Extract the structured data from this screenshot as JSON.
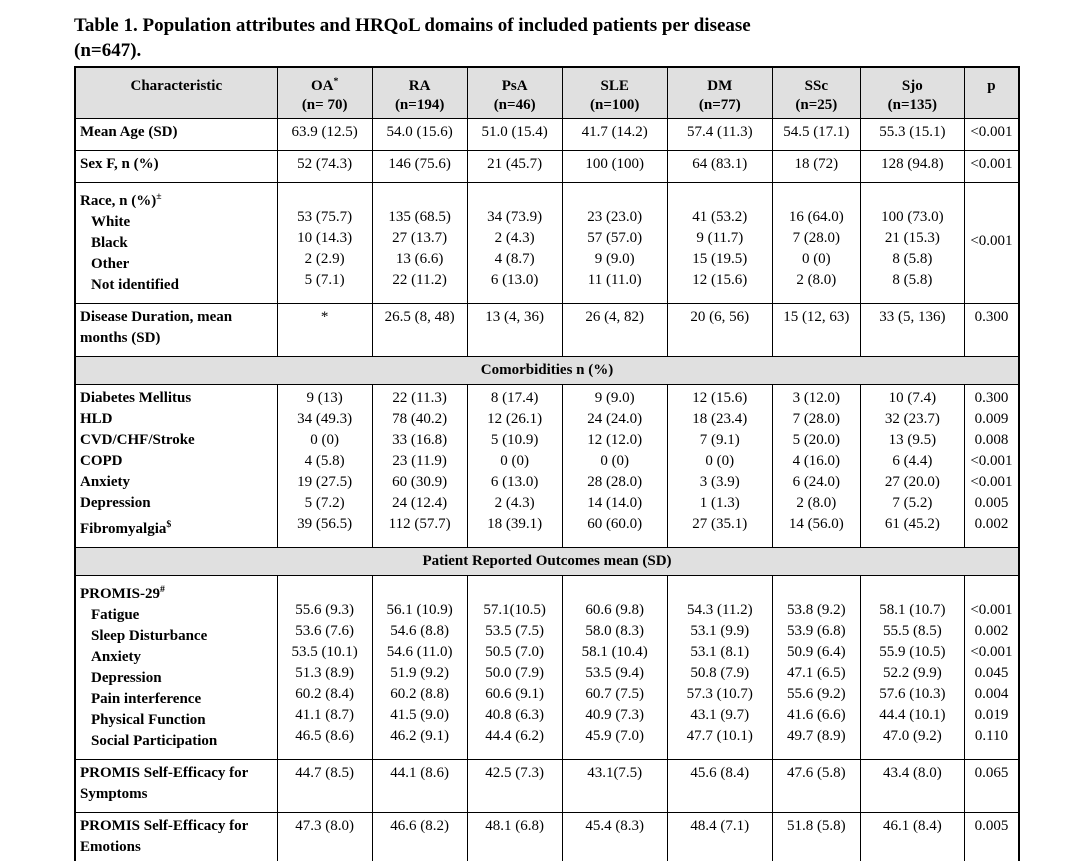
{
  "page": {
    "title_line1": "Table 1. Population attributes and HRQoL domains of included patients per disease",
    "title_line2": "(n=647)."
  },
  "colors": {
    "header_bg": "#e0e0e0",
    "border": "#000000",
    "text": "#000000"
  },
  "table": {
    "header": [
      {
        "label": "Characteristic",
        "sup": "",
        "sub": ""
      },
      {
        "label": "OA",
        "sup": "*",
        "sub": "(n= 70)"
      },
      {
        "label": "RA",
        "sup": "",
        "sub": "(n=194)"
      },
      {
        "label": "PsA",
        "sup": "",
        "sub": "(n=46)"
      },
      {
        "label": "SLE",
        "sup": "",
        "sub": "(n=100)"
      },
      {
        "label": "DM",
        "sup": "",
        "sub": "(n=77)"
      },
      {
        "label": "SSc",
        "sup": "",
        "sub": "(n=25)"
      },
      {
        "label": "Sjo",
        "sup": "",
        "sub": "(n=135)"
      },
      {
        "label": "p",
        "sup": "",
        "sub": ""
      }
    ],
    "rows": [
      {
        "type": "block",
        "name": "mean-age",
        "lines": [
          {
            "label": "Mean Age (SD)",
            "sup": "",
            "indent": false,
            "values": [
              "63.9 (12.5)",
              "54.0 (15.6)",
              "51.0 (15.4)",
              "41.7 (14.2)",
              "57.4 (11.3)",
              "54.5 (17.1)",
              "55.3 (15.1)"
            ],
            "p": "<0.001"
          }
        ]
      },
      {
        "type": "block",
        "name": "sex-f",
        "lines": [
          {
            "label": "Sex F, n (%)",
            "sup": "",
            "indent": false,
            "values": [
              "52 (74.3)",
              "146 (75.6)",
              "21 (45.7)",
              "100 (100)",
              "64 (83.1)",
              "18 (72)",
              "128 (94.8)"
            ],
            "p": "<0.001"
          }
        ]
      },
      {
        "type": "block",
        "name": "race",
        "p_center": "<0.001",
        "lines": [
          {
            "label": "Race, n (%)",
            "sup": "±",
            "indent": false,
            "values": [
              "",
              "",
              "",
              "",
              "",
              "",
              ""
            ],
            "p": ""
          },
          {
            "label": "White",
            "sup": "",
            "indent": true,
            "values": [
              "53 (75.7)",
              "135 (68.5)",
              "34 (73.9)",
              "23 (23.0)",
              "41 (53.2)",
              "16 (64.0)",
              "100 (73.0)"
            ],
            "p": ""
          },
          {
            "label": "Black",
            "sup": "",
            "indent": true,
            "values": [
              "10 (14.3)",
              "27 (13.7)",
              "2 (4.3)",
              "57 (57.0)",
              "9 (11.7)",
              "7 (28.0)",
              "21 (15.3)"
            ],
            "p": ""
          },
          {
            "label": "Other",
            "sup": "",
            "indent": true,
            "values": [
              "2 (2.9)",
              "13 (6.6)",
              "4 (8.7)",
              "9 (9.0)",
              "15 (19.5)",
              "0 (0)",
              "8 (5.8)"
            ],
            "p": ""
          },
          {
            "label": "Not identified",
            "sup": "",
            "indent": true,
            "values": [
              "5 (7.1)",
              "22 (11.2)",
              "6 (13.0)",
              "11 (11.0)",
              "12 (15.6)",
              "2 (8.0)",
              "8 (5.8)"
            ],
            "p": ""
          }
        ]
      },
      {
        "type": "block",
        "name": "disease-duration",
        "lines": [
          {
            "label": "Disease Duration, mean months (SD)",
            "sup": "",
            "indent": false,
            "values": [
              "*",
              "26.5 (8, 48)",
              "13 (4, 36)",
              "26 (4, 82)",
              "20 (6, 56)",
              "15 (12, 63)",
              "33 (5, 136)"
            ],
            "p": "0.300"
          }
        ]
      },
      {
        "type": "section",
        "name": "comorbidities",
        "label": "Comorbidities n (%)"
      },
      {
        "type": "block",
        "name": "comorbidities-rows",
        "lines": [
          {
            "label": "Diabetes Mellitus",
            "sup": "",
            "indent": false,
            "values": [
              "9 (13)",
              "22 (11.3)",
              "8 (17.4)",
              "9 (9.0)",
              "12 (15.6)",
              "3 (12.0)",
              "10 (7.4)"
            ],
            "p": "0.300"
          },
          {
            "label": "HLD",
            "sup": "",
            "indent": false,
            "values": [
              "34 (49.3)",
              "78 (40.2)",
              "12 (26.1)",
              "24 (24.0)",
              "18 (23.4)",
              "7 (28.0)",
              "32 (23.7)"
            ],
            "p": "0.009"
          },
          {
            "label": "CVD/CHF/Stroke",
            "sup": "",
            "indent": false,
            "values": [
              "0 (0)",
              "33 (16.8)",
              "5 (10.9)",
              "12 (12.0)",
              "7 (9.1)",
              "5 (20.0)",
              "13 (9.5)"
            ],
            "p": "0.008"
          },
          {
            "label": "COPD",
            "sup": "",
            "indent": false,
            "values": [
              "4 (5.8)",
              "23 (11.9)",
              "0 (0)",
              "0 (0)",
              "0 (0)",
              "4 (16.0)",
              "6 (4.4)"
            ],
            "p": "<0.001"
          },
          {
            "label": "Anxiety",
            "sup": "",
            "indent": false,
            "values": [
              "19 (27.5)",
              "60 (30.9)",
              "6 (13.0)",
              "28 (28.0)",
              "3 (3.9)",
              "6 (24.0)",
              "27 (20.0)"
            ],
            "p": "<0.001"
          },
          {
            "label": "Depression",
            "sup": "",
            "indent": false,
            "values": [
              "5 (7.2)",
              "24 (12.4)",
              "2 (4.3)",
              "14 (14.0)",
              "1 (1.3)",
              "2 (8.0)",
              "7 (5.2)"
            ],
            "p": "0.005"
          },
          {
            "label": "Fibromyalgia",
            "sup": "$",
            "indent": false,
            "values": [
              "39 (56.5)",
              "112 (57.7)",
              "18 (39.1)",
              "60 (60.0)",
              "27 (35.1)",
              "14 (56.0)",
              "61 (45.2)"
            ],
            "p": "0.002"
          }
        ]
      },
      {
        "type": "section",
        "name": "patient-reported-outcomes",
        "label": "Patient Reported Outcomes mean (SD)"
      },
      {
        "type": "block",
        "name": "promis-29",
        "lines": [
          {
            "label": "PROMIS-29",
            "sup": "#",
            "indent": false,
            "values": [
              "",
              "",
              "",
              "",
              "",
              "",
              ""
            ],
            "p": ""
          },
          {
            "label": "Fatigue",
            "sup": "",
            "indent": true,
            "values": [
              "55.6 (9.3)",
              "56.1 (10.9)",
              "57.1(10.5)",
              "60.6 (9.8)",
              "54.3 (11.2)",
              "53.8 (9.2)",
              "58.1 (10.7)"
            ],
            "p": "<0.001"
          },
          {
            "label": "Sleep Disturbance",
            "sup": "",
            "indent": true,
            "values": [
              "53.6 (7.6)",
              "54.6 (8.8)",
              "53.5 (7.5)",
              "58.0 (8.3)",
              "53.1 (9.9)",
              "53.9 (6.8)",
              "55.5 (8.5)"
            ],
            "p": "0.002"
          },
          {
            "label": "Anxiety",
            "sup": "",
            "indent": true,
            "values": [
              "53.5 (10.1)",
              "54.6 (11.0)",
              "50.5 (7.0)",
              "58.1 (10.4)",
              "53.1 (8.1)",
              "50.9 (6.4)",
              "55.9 (10.5)"
            ],
            "p": "<0.001"
          },
          {
            "label": "Depression",
            "sup": "",
            "indent": true,
            "values": [
              "51.3 (8.9)",
              "51.9 (9.2)",
              "50.0 (7.9)",
              "53.5 (9.4)",
              "50.8 (7.9)",
              "47.1 (6.5)",
              "52.2 (9.9)"
            ],
            "p": "0.045"
          },
          {
            "label": "Pain interference",
            "sup": "",
            "indent": true,
            "values": [
              "60.2 (8.4)",
              "60.2 (8.8)",
              "60.6 (9.1)",
              "60.7 (7.5)",
              "57.3 (10.7)",
              "55.6 (9.2)",
              "57.6 (10.3)"
            ],
            "p": "0.004"
          },
          {
            "label": "Physical Function",
            "sup": "",
            "indent": true,
            "values": [
              "41.1 (8.7)",
              "41.5 (9.0)",
              "40.8 (6.3)",
              "40.9 (7.3)",
              "43.1 (9.7)",
              "41.6 (6.6)",
              "44.4 (10.1)"
            ],
            "p": "0.019"
          },
          {
            "label": "Social Participation",
            "sup": "",
            "indent": true,
            "values": [
              "46.5 (8.6)",
              "46.2 (9.1)",
              "44.4 (6.2)",
              "45.9 (7.0)",
              "47.7 (10.1)",
              "49.7 (8.9)",
              "47.0 (9.2)"
            ],
            "p": "0.110"
          }
        ]
      },
      {
        "type": "block",
        "name": "promis-self-efficacy-symptoms",
        "lines": [
          {
            "label": "PROMIS Self-Efficacy for Symptoms",
            "sup": "",
            "indent": false,
            "values": [
              "44.7 (8.5)",
              "44.1 (8.6)",
              "42.5 (7.3)",
              "43.1(7.5)",
              "45.6 (8.4)",
              "47.6 (5.8)",
              "43.4 (8.0)"
            ],
            "p": "0.065"
          }
        ]
      },
      {
        "type": "block",
        "name": "promis-self-efficacy-emotions",
        "lines": [
          {
            "label": "PROMIS Self-Efficacy for Emotions",
            "sup": "",
            "indent": false,
            "values": [
              "47.3 (8.0)",
              "46.6 (8.2)",
              "48.1 (6.8)",
              "45.4 (8.3)",
              "48.4 (7.1)",
              "51.8 (5.8)",
              "46.1 (8.4)"
            ],
            "p": "0.005"
          }
        ]
      }
    ]
  }
}
